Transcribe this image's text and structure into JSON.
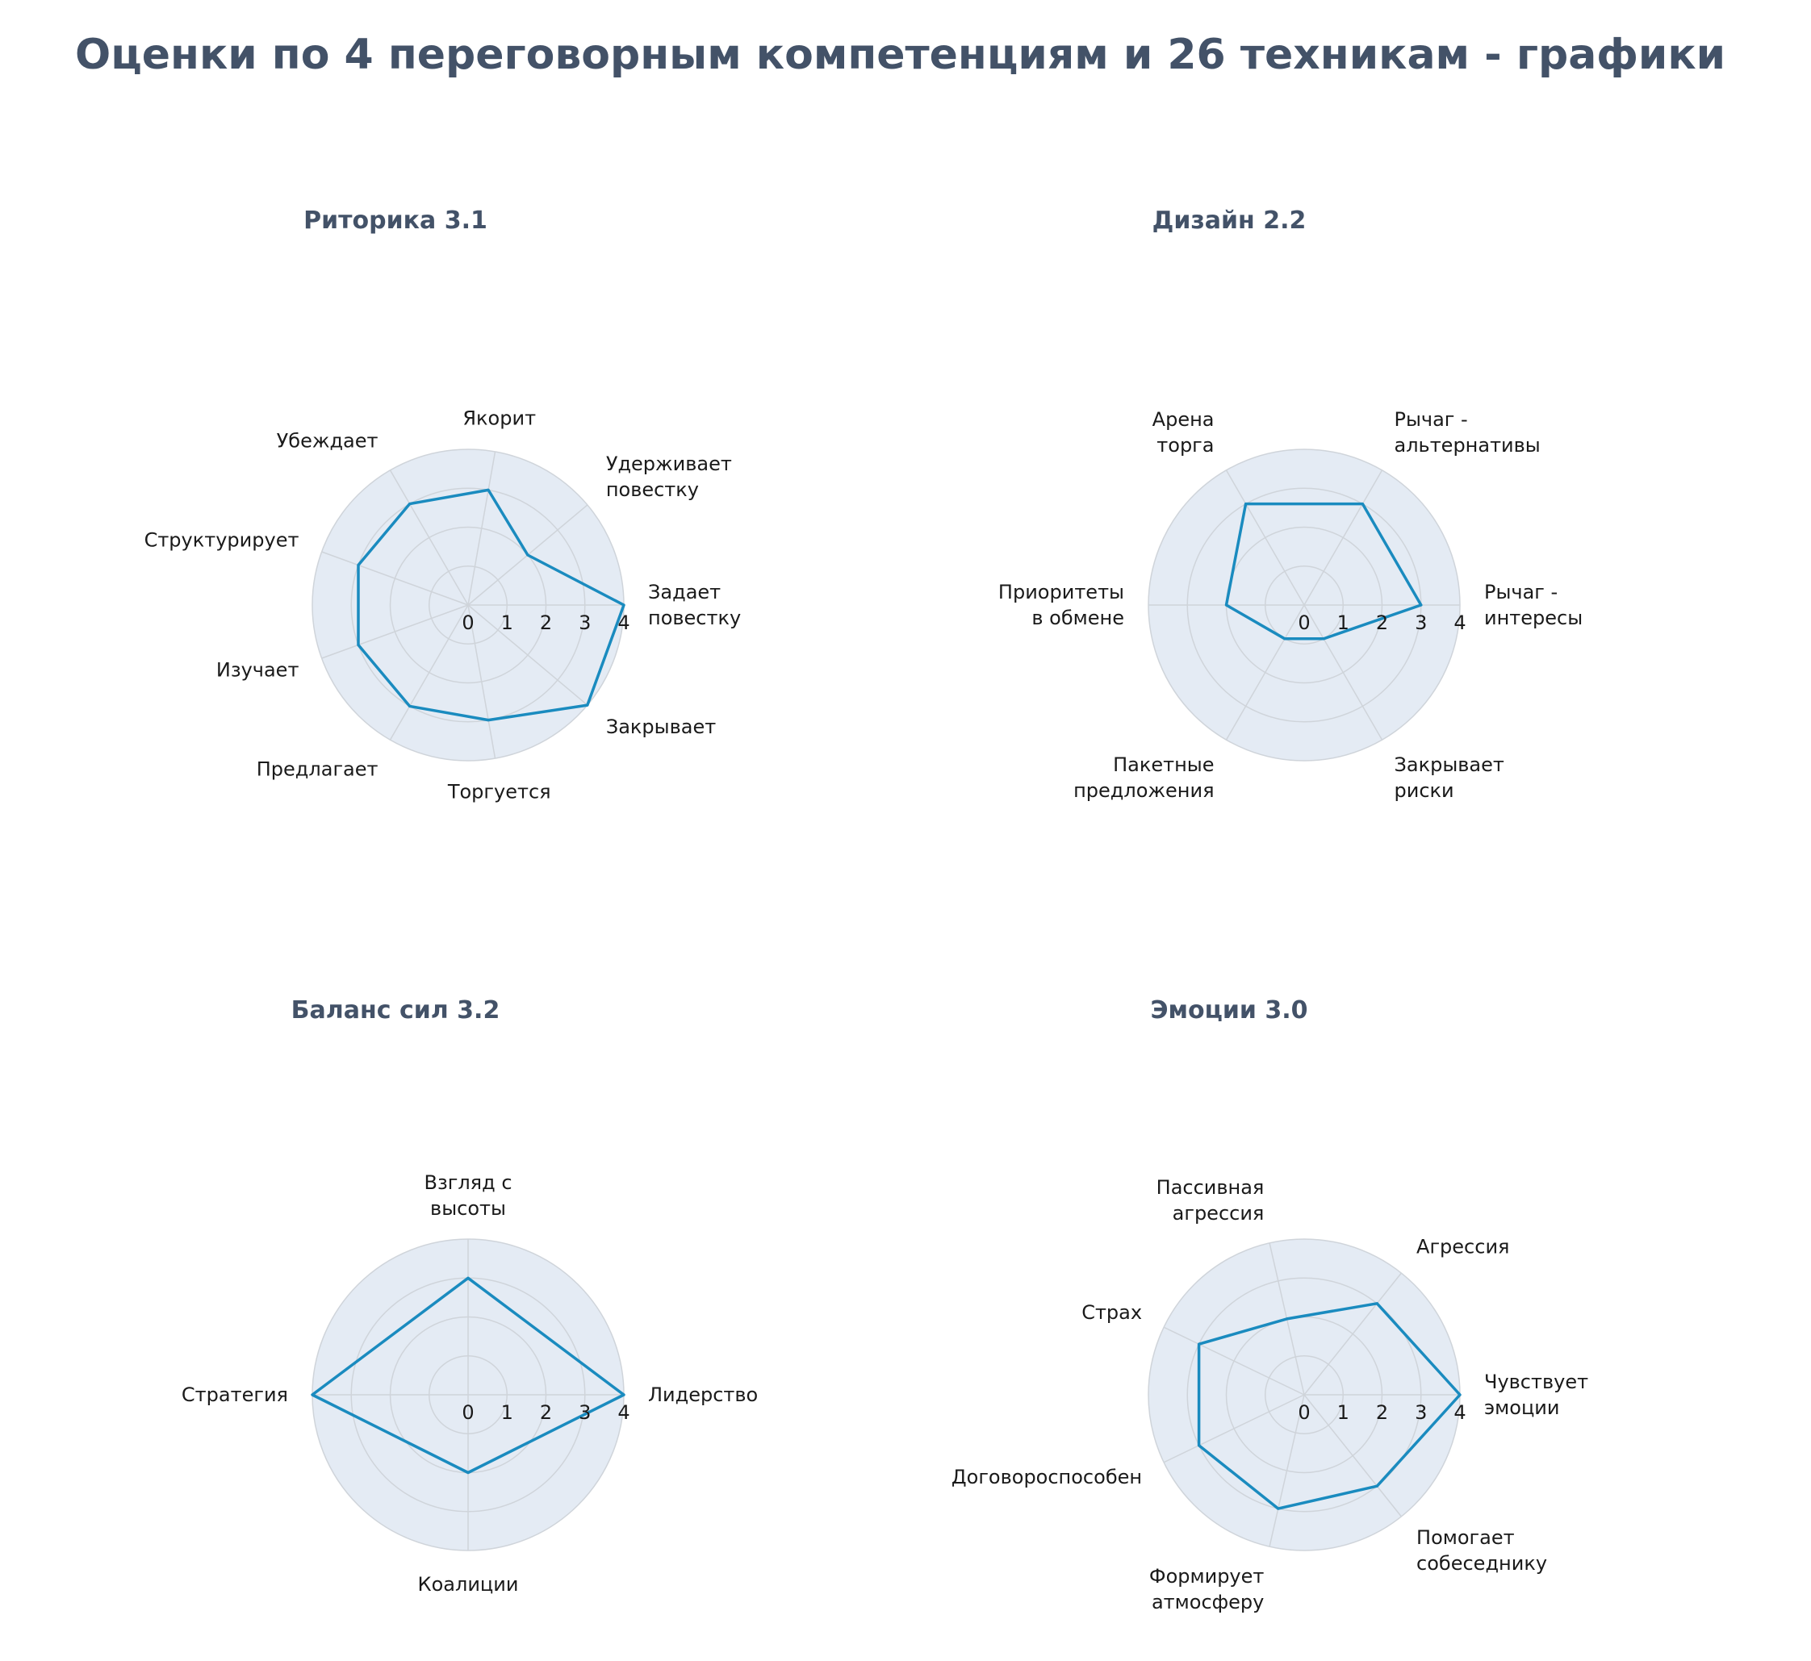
{
  "title": "Оценки по 4 переговорным компетенциям и 26 техникам - графики",
  "colors": {
    "title": "#435268",
    "series": "#1a8bbf",
    "disk": "#e4ebf4",
    "grid": "#cfd4da"
  },
  "chart_data": [
    {
      "type": "radar",
      "title": "Риторика 3.1",
      "axes": [
        [
          "Задает",
          "повестку"
        ],
        [
          "Удерживает",
          "повестку"
        ],
        [
          "Якорит"
        ],
        [
          "Убеждает"
        ],
        [
          "Структурирует"
        ],
        [
          "Изучает"
        ],
        [
          "Предлагает"
        ],
        [
          "Торгуется"
        ],
        [
          "Закрывает"
        ]
      ],
      "values": [
        4,
        2,
        3,
        3,
        3,
        3,
        3,
        3,
        4
      ],
      "rlim": [
        0,
        4
      ],
      "ticks": [
        "0",
        "1",
        "2",
        "3",
        "4"
      ]
    },
    {
      "type": "radar",
      "title": "Дизайн 2.2",
      "axes": [
        [
          "Рычаг -",
          "интересы"
        ],
        [
          "Рычаг -",
          "альтернативы"
        ],
        [
          "Арена",
          "торга"
        ],
        [
          "Приоритеты",
          "в обмене"
        ],
        [
          "Пакетные",
          "предложения"
        ],
        [
          "Закрывает",
          "риски"
        ]
      ],
      "values": [
        3,
        3,
        3,
        2,
        1,
        1
      ],
      "rlim": [
        0,
        4
      ],
      "ticks": [
        "0",
        "1",
        "2",
        "3",
        "4"
      ]
    },
    {
      "type": "radar",
      "title": "Баланс сил 3.2",
      "axes": [
        [
          "Лидерство"
        ],
        [
          "Взгляд с",
          "высоты"
        ],
        [
          "Стратегия"
        ],
        [
          "Коалиции"
        ]
      ],
      "values": [
        4,
        3,
        4,
        2
      ],
      "rlim": [
        0,
        4
      ],
      "ticks": [
        "0",
        "1",
        "2",
        "3",
        "4"
      ]
    },
    {
      "type": "radar",
      "title": "Эмоции 3.0",
      "axes": [
        [
          "Чувствует",
          "эмоции"
        ],
        [
          "Агрессия"
        ],
        [
          "Пассивная",
          "агрессия"
        ],
        [
          "Страх"
        ],
        [
          "Договороспособен"
        ],
        [
          "Формирует",
          "атмосферу"
        ],
        [
          "Помогает",
          "собеседнику"
        ]
      ],
      "values": [
        4,
        3,
        2,
        3,
        3,
        3,
        3
      ],
      "rlim": [
        0,
        4
      ],
      "ticks": [
        "0",
        "1",
        "2",
        "3",
        "4"
      ]
    }
  ]
}
